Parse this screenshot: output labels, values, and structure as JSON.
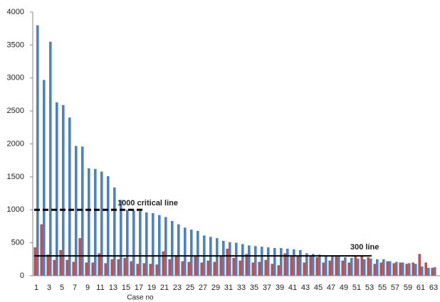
{
  "chart_data": {
    "type": "bar",
    "x_label": "Case no",
    "categories": [
      1,
      null,
      3,
      null,
      5,
      null,
      7,
      null,
      9,
      null,
      11,
      null,
      13,
      null,
      15,
      null,
      17,
      null,
      19,
      null,
      21,
      null,
      23,
      null,
      25,
      null,
      27,
      null,
      29,
      null,
      31,
      null,
      33,
      null,
      35,
      null,
      37,
      null,
      39,
      null,
      41,
      null,
      43,
      null,
      45,
      null,
      47,
      null,
      49,
      null,
      51,
      null,
      53,
      null,
      55,
      null,
      57,
      null,
      59,
      null,
      61,
      null,
      63
    ],
    "series": [
      {
        "color": "#c0504d",
        "values": [
          430,
          780,
          320,
          240,
          390,
          240,
          210,
          570,
          200,
          200,
          340,
          190,
          250,
          250,
          270,
          220,
          180,
          190,
          180,
          170,
          370,
          250,
          310,
          220,
          210,
          300,
          200,
          230,
          210,
          300,
          410,
          270,
          230,
          330,
          200,
          210,
          240,
          180,
          160,
          340,
          290,
          300,
          200,
          290,
          280,
          200,
          230,
          290,
          230,
          200,
          290,
          300,
          280,
          180,
          200,
          220,
          190,
          200,
          180,
          200,
          330,
          200,
          120
        ]
      },
      {
        "color": "#4f81bd",
        "values": [
          3800,
          2970,
          3550,
          2630,
          2590,
          2400,
          1970,
          1960,
          1630,
          1620,
          1580,
          1510,
          1340,
          1150,
          1000,
          990,
          980,
          960,
          950,
          920,
          890,
          830,
          780,
          730,
          700,
          680,
          610,
          590,
          570,
          530,
          510,
          500,
          480,
          460,
          450,
          440,
          430,
          420,
          420,
          410,
          400,
          390,
          340,
          330,
          320,
          310,
          300,
          290,
          280,
          270,
          260,
          250,
          260,
          250,
          250,
          220,
          210,
          200,
          190,
          180,
          140,
          120,
          130
        ]
      }
    ],
    "reference_lines": [
      {
        "label": "1000 critical line",
        "value": 1000,
        "style": "dashed"
      },
      {
        "label": "300 line",
        "value": 300,
        "style": "solid"
      }
    ],
    "ylim": [
      0,
      4000
    ],
    "yticks": [
      0,
      500,
      1000,
      1500,
      2000,
      2500,
      3000,
      3500,
      4000
    ]
  }
}
